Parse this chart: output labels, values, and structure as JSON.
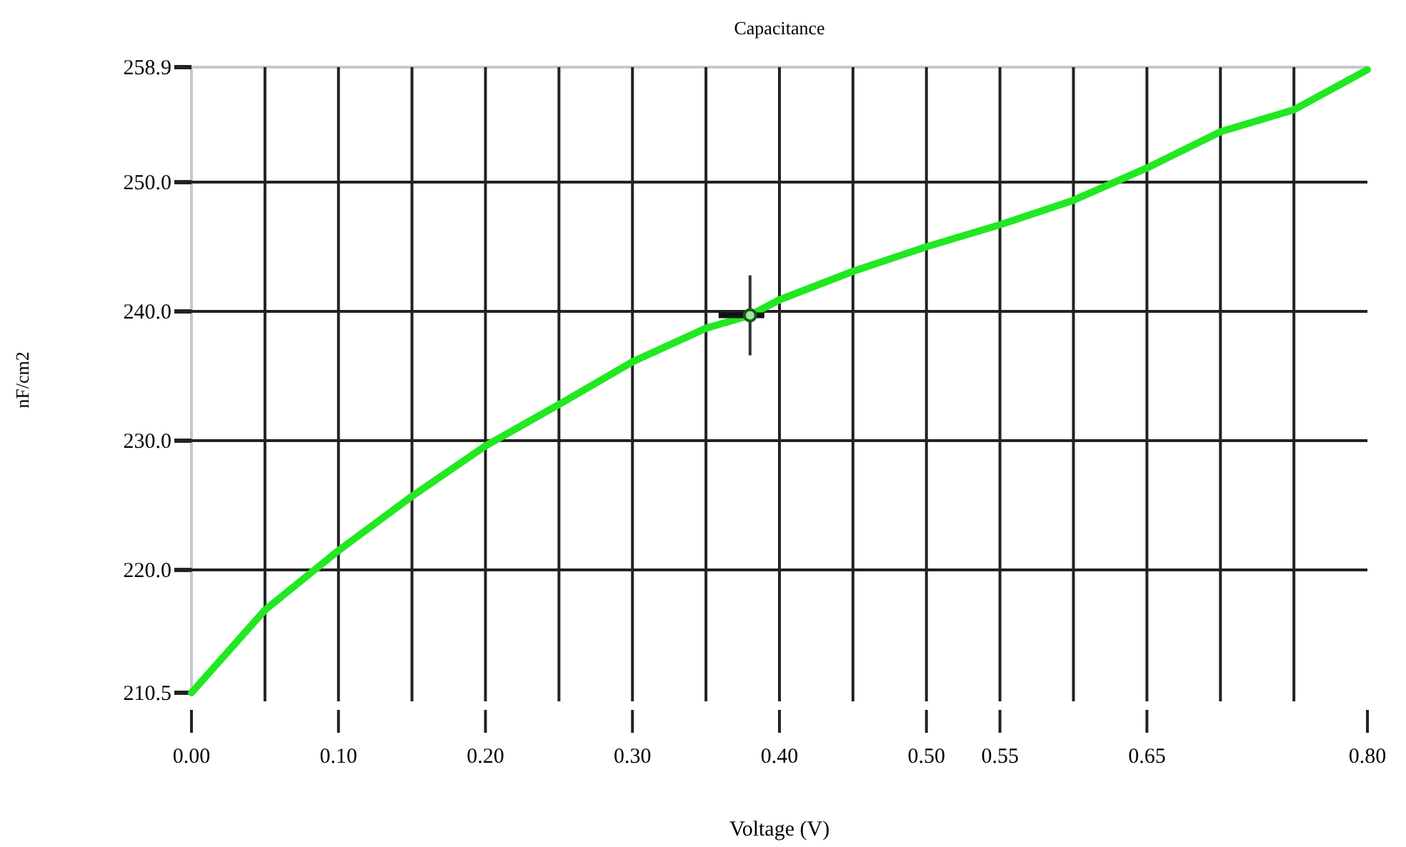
{
  "chart_data": {
    "type": "line",
    "title": "Capacitance",
    "xlabel": "Voltage (V)",
    "ylabel": "nF/cm2",
    "x": [
      0,
      0.05,
      0.1,
      0.15,
      0.2,
      0.25,
      0.3,
      0.35,
      0.38,
      0.4,
      0.45,
      0.5,
      0.55,
      0.6,
      0.65,
      0.7,
      0.75,
      0.8
    ],
    "series": [
      {
        "color": "#22e822",
        "values": [
          210.5,
          216.9,
          221.5,
          225.7,
          229.6,
          232.8,
          236.1,
          238.7,
          239.7,
          240.9,
          243.1,
          245.0,
          246.7,
          248.6,
          251.1,
          253.9,
          255.6,
          258.7
        ]
      }
    ],
    "xlim": [
      0,
      0.8
    ],
    "xticks": [
      {
        "value": 0,
        "label": "0.00"
      },
      {
        "value": 0.05,
        "label": null
      },
      {
        "value": 0.1,
        "label": "0.10"
      },
      {
        "value": 0.15,
        "label": null
      },
      {
        "value": 0.2,
        "label": "0.20"
      },
      {
        "value": 0.25,
        "label": null
      },
      {
        "value": 0.3,
        "label": "0.30"
      },
      {
        "value": 0.35,
        "label": null
      },
      {
        "value": 0.4,
        "label": "0.40"
      },
      {
        "value": 0.45,
        "label": null
      },
      {
        "value": 0.5,
        "label": "0.50"
      },
      {
        "value": 0.55,
        "label": "0.55"
      },
      {
        "value": 0.6,
        "label": null
      },
      {
        "value": 0.65,
        "label": "0.65"
      },
      {
        "value": 0.7,
        "label": null
      },
      {
        "value": 0.75,
        "label": null
      },
      {
        "value": 0.8,
        "label": "0.80"
      }
    ],
    "ylim": [
      210.5,
      258.9
    ],
    "yticks": [
      210.5,
      {
        "value": 220,
        "label": "220.0"
      },
      {
        "value": 230,
        "label": "230.0"
      },
      {
        "value": 240,
        "label": "240.0"
      },
      {
        "value": 250,
        "label": "250.0"
      },
      258.9
    ],
    "grid": true,
    "marker": "none",
    "line_style": "solid"
  }
}
